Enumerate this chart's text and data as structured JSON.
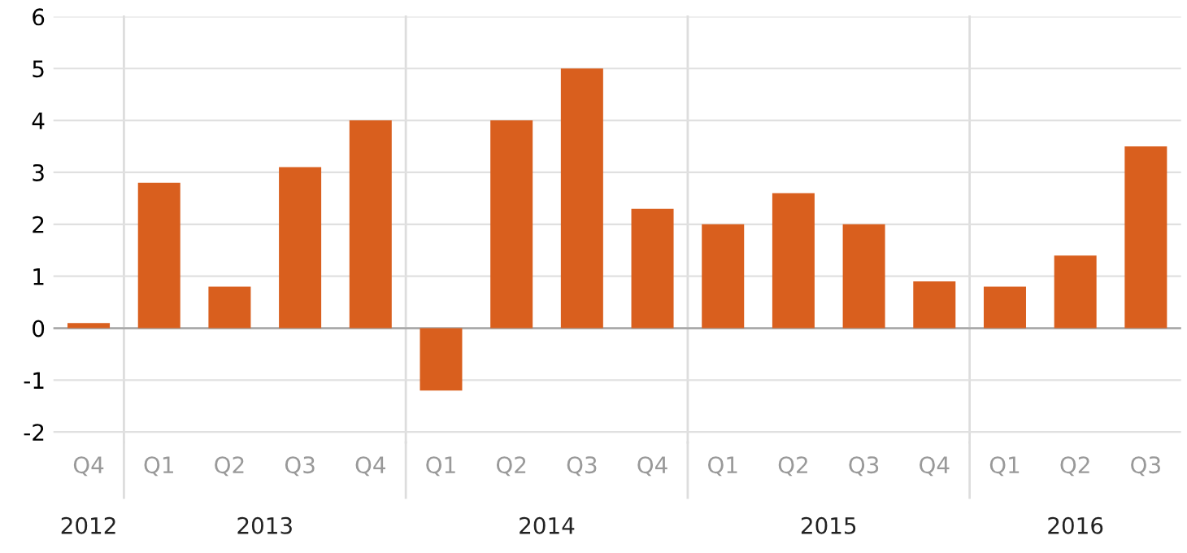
{
  "chart_data": {
    "type": "bar",
    "categories": [
      "Q4",
      "Q1",
      "Q2",
      "Q3",
      "Q4",
      "Q1",
      "Q2",
      "Q3",
      "Q4",
      "Q1",
      "Q2",
      "Q3",
      "Q4",
      "Q1",
      "Q2",
      "Q3"
    ],
    "values": [
      0.1,
      2.8,
      0.8,
      3.1,
      4.0,
      -1.2,
      4.0,
      5.0,
      2.3,
      2.0,
      2.6,
      2.0,
      0.9,
      0.8,
      1.4,
      3.5
    ],
    "color": "#d95f1e",
    "ylim": [
      -2.2,
      6
    ],
    "yticks": [
      {
        "value": -2,
        "label": "-2"
      },
      {
        "value": -1,
        "label": "-1"
      },
      0,
      1,
      2,
      3,
      4,
      5,
      6
    ],
    "grid": "y",
    "annotations": [
      "2012",
      "2013",
      "2014",
      "2015",
      "2016"
    ]
  }
}
